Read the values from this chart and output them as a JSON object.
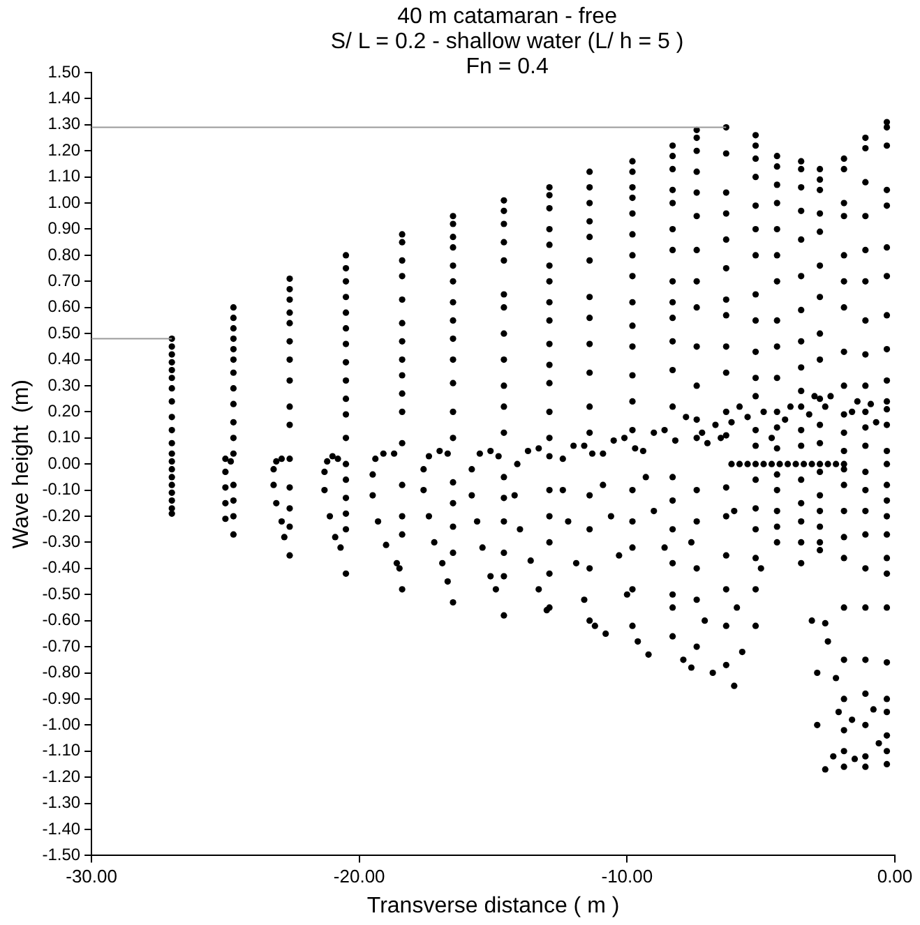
{
  "chart_data": {
    "type": "scatter",
    "title": "40 m catamaran - free",
    "subtitle": "S/ L = 0.2 - shallow water (L/ h = 5 )",
    "annotations": [
      "Fn = 0.4"
    ],
    "xlabel": "Transverse distance ( m )",
    "ylabel": "Wave height  (m)",
    "xlim": [
      -30,
      0
    ],
    "ylim": [
      -1.5,
      1.5
    ],
    "xticks": [
      {
        "value": -30,
        "label": "-30.00"
      },
      {
        "value": -20,
        "label": "-20.00"
      },
      {
        "value": -10,
        "label": "-10.00"
      },
      {
        "value": 0,
        "label": "0.00"
      }
    ],
    "yticks": [
      {
        "value": -1.5,
        "label": "-1.50"
      },
      {
        "value": -1.4,
        "label": "-1.40"
      },
      {
        "value": -1.3,
        "label": "-1.30"
      },
      {
        "value": -1.2,
        "label": "-1.20"
      },
      {
        "value": -1.1,
        "label": "-1.10"
      },
      {
        "value": -1.0,
        "label": "-1.00"
      },
      {
        "value": -0.9,
        "label": "-0.90"
      },
      {
        "value": -0.8,
        "label": "-0.80"
      },
      {
        "value": -0.7,
        "label": "-0.70"
      },
      {
        "value": -0.6,
        "label": "-0.60"
      },
      {
        "value": -0.5,
        "label": "-0.50"
      },
      {
        "value": -0.4,
        "label": "-0.40"
      },
      {
        "value": -0.3,
        "label": "-0.30"
      },
      {
        "value": -0.2,
        "label": "-0.20"
      },
      {
        "value": -0.1,
        "label": "-0.10"
      },
      {
        "value": 0,
        "label": "0.00"
      },
      {
        "value": 0.1,
        "label": "0.10"
      },
      {
        "value": 0.2,
        "label": "0.20"
      },
      {
        "value": 0.3,
        "label": "0.30"
      },
      {
        "value": 0.4,
        "label": "0.40"
      },
      {
        "value": 0.5,
        "label": "0.50"
      },
      {
        "value": 0.6,
        "label": "0.60"
      },
      {
        "value": 0.7,
        "label": "0.70"
      },
      {
        "value": 0.8,
        "label": "0.80"
      },
      {
        "value": 0.9,
        "label": "0.90"
      },
      {
        "value": 1.0,
        "label": "1.00"
      },
      {
        "value": 1.1,
        "label": "1.10"
      },
      {
        "value": 1.2,
        "label": "1.20"
      },
      {
        "value": 1.3,
        "label": "1.30"
      },
      {
        "value": 1.4,
        "label": "1.40"
      },
      {
        "value": 1.5,
        "label": "1.50"
      }
    ],
    "grid": false,
    "legend": false,
    "marker": "circle",
    "series": [
      {
        "type": "line",
        "marker": "none",
        "color": "#999999",
        "x": [
          -30,
          -6.3
        ],
        "values": [
          1.29,
          1.29
        ]
      },
      {
        "type": "line",
        "marker": "none",
        "color": "#999999",
        "x": [
          -30,
          -27
        ],
        "values": [
          0.48,
          0.48
        ]
      },
      {
        "color": "#000000",
        "x": [
          -27,
          -27,
          -27,
          -27,
          -27,
          -27,
          -27,
          -27,
          -27,
          -27,
          -27,
          -27,
          -27,
          -27,
          -27,
          -27,
          -27,
          -27,
          -27,
          -27
        ],
        "values": [
          0.48,
          0.45,
          0.42,
          0.39,
          0.36,
          0.33,
          0.29,
          0.24,
          0.18,
          0.13,
          0.08,
          0.04,
          0.01,
          -0.02,
          -0.05,
          -0.08,
          -0.11,
          -0.14,
          -0.17,
          -0.19
        ]
      },
      {
        "color": "#000000",
        "x": [
          -24.7,
          -24.7,
          -24.7,
          -24.7,
          -24.7,
          -24.7,
          -24.7,
          -24.7,
          -24.7,
          -24.7,
          -24.7,
          -24.7,
          -24.7,
          -24.7,
          -24.7,
          -24.7,
          -25.0,
          -25.0,
          -25.0,
          -25.0,
          -25.0,
          -24.8
        ],
        "values": [
          0.6,
          0.56,
          0.52,
          0.48,
          0.44,
          0.4,
          0.35,
          0.29,
          0.23,
          0.16,
          0.1,
          0.04,
          -0.08,
          -0.14,
          -0.2,
          -0.27,
          0.02,
          -0.03,
          -0.09,
          -0.15,
          -0.21,
          0.01
        ]
      },
      {
        "color": "#000000",
        "x": [
          -22.6,
          -22.6,
          -22.6,
          -22.6,
          -22.6,
          -22.6,
          -22.6,
          -22.6,
          -22.6,
          -22.6,
          -22.6,
          -22.6,
          -22.6,
          -22.6,
          -22.6,
          -23.2,
          -23.1,
          -22.9,
          -23.2,
          -23.1,
          -22.9,
          -22.8
        ],
        "values": [
          0.71,
          0.67,
          0.63,
          0.58,
          0.54,
          0.47,
          0.4,
          0.32,
          0.22,
          0.15,
          0.02,
          -0.09,
          -0.17,
          -0.24,
          -0.35,
          -0.02,
          0.01,
          0.02,
          -0.08,
          -0.15,
          -0.22,
          -0.28
        ]
      },
      {
        "color": "#000000",
        "x": [
          -20.5,
          -20.5,
          -20.5,
          -20.5,
          -20.5,
          -20.5,
          -20.5,
          -20.5,
          -20.5,
          -20.5,
          -20.5,
          -20.5,
          -20.5,
          -20.5,
          -20.5,
          -20.5,
          -20.5,
          -20.5,
          -21.3,
          -21.2,
          -21.0,
          -20.8,
          -21.3,
          -21.1,
          -20.9,
          -20.7
        ],
        "values": [
          0.8,
          0.75,
          0.7,
          0.64,
          0.58,
          0.52,
          0.46,
          0.39,
          0.32,
          0.25,
          0.19,
          0.1,
          0.0,
          -0.06,
          -0.13,
          -0.19,
          -0.25,
          -0.42,
          -0.03,
          0.01,
          0.03,
          0.02,
          -0.1,
          -0.2,
          -0.28,
          -0.32
        ]
      },
      {
        "color": "#000000",
        "x": [
          -18.4,
          -18.4,
          -18.4,
          -18.4,
          -18.4,
          -18.4,
          -18.4,
          -18.4,
          -18.4,
          -18.4,
          -18.4,
          -18.4,
          -18.4,
          -18.4,
          -18.4,
          -18.4,
          -19.5,
          -19.4,
          -19.1,
          -18.7,
          -19.5,
          -19.3,
          -19.0,
          -18.6,
          -18.5
        ],
        "values": [
          0.88,
          0.85,
          0.78,
          0.72,
          0.63,
          0.54,
          0.47,
          0.4,
          0.34,
          0.27,
          0.2,
          0.08,
          -0.08,
          -0.2,
          -0.27,
          -0.48,
          -0.04,
          0.02,
          0.04,
          0.04,
          -0.12,
          -0.22,
          -0.31,
          -0.38,
          -0.4
        ]
      },
      {
        "color": "#000000",
        "x": [
          -16.5,
          -16.5,
          -16.5,
          -16.5,
          -16.5,
          -16.5,
          -16.5,
          -16.5,
          -16.5,
          -16.5,
          -16.5,
          -16.5,
          -16.5,
          -16.5,
          -16.5,
          -16.5,
          -16.5,
          -16.5,
          -17.6,
          -17.4,
          -17.0,
          -16.7,
          -17.6,
          -17.4,
          -17.2,
          -16.9,
          -16.7
        ],
        "values": [
          0.95,
          0.92,
          0.87,
          0.83,
          0.76,
          0.7,
          0.62,
          0.55,
          0.48,
          0.4,
          0.31,
          0.2,
          0.1,
          -0.07,
          -0.15,
          -0.24,
          -0.34,
          -0.53,
          -0.02,
          0.03,
          0.05,
          0.04,
          -0.1,
          -0.2,
          -0.3,
          -0.38,
          -0.45
        ]
      },
      {
        "color": "#000000",
        "x": [
          -14.6,
          -14.6,
          -14.6,
          -14.6,
          -14.6,
          -14.6,
          -14.6,
          -14.6,
          -14.6,
          -14.6,
          -14.6,
          -14.6,
          -14.6,
          -14.6,
          -14.6,
          -14.6,
          -14.6,
          -14.6,
          -15.8,
          -15.5,
          -15.1,
          -14.8,
          -15.8,
          -15.6,
          -15.4,
          -15.1,
          -14.9
        ],
        "values": [
          1.01,
          0.97,
          0.92,
          0.85,
          0.78,
          0.65,
          0.6,
          0.5,
          0.4,
          0.3,
          0.22,
          0.12,
          -0.05,
          -0.13,
          -0.22,
          -0.34,
          -0.43,
          -0.58,
          -0.02,
          0.04,
          0.05,
          0.03,
          -0.12,
          -0.22,
          -0.32,
          -0.43,
          -0.48
        ]
      },
      {
        "color": "#000000",
        "x": [
          -12.9,
          -12.9,
          -12.9,
          -12.9,
          -12.9,
          -12.9,
          -12.9,
          -12.9,
          -12.9,
          -12.9,
          -12.9,
          -12.9,
          -12.9,
          -12.9,
          -12.9,
          -12.9,
          -12.9,
          -12.9,
          -12.9,
          -14.1,
          -13.7,
          -13.3,
          -12.9,
          -14.2,
          -14.0,
          -13.6,
          -13.3,
          -13.0
        ],
        "values": [
          1.06,
          1.03,
          0.98,
          0.9,
          0.84,
          0.76,
          0.7,
          0.62,
          0.55,
          0.46,
          0.38,
          0.31,
          0.2,
          0.1,
          -0.1,
          -0.2,
          -0.3,
          -0.42,
          -0.55,
          0.0,
          0.05,
          0.06,
          0.03,
          -0.12,
          -0.25,
          -0.37,
          -0.48,
          -0.56
        ]
      },
      {
        "color": "#000000",
        "x": [
          -11.4,
          -11.4,
          -11.4,
          -11.4,
          -11.4,
          -11.4,
          -11.4,
          -11.4,
          -11.4,
          -11.4,
          -11.4,
          -11.4,
          -11.4,
          -11.4,
          -11.4,
          -11.4,
          -12.4,
          -12.0,
          -11.6,
          -11.3,
          -12.4,
          -12.2,
          -11.9,
          -11.6,
          -11.2,
          -10.8
        ],
        "values": [
          1.12,
          1.06,
          1.0,
          0.93,
          0.87,
          0.78,
          0.64,
          0.56,
          0.46,
          0.35,
          0.22,
          0.12,
          -0.12,
          -0.25,
          -0.4,
          -0.6,
          0.02,
          0.07,
          0.07,
          0.04,
          -0.1,
          -0.22,
          -0.38,
          -0.52,
          -0.62,
          -0.65
        ]
      },
      {
        "color": "#000000",
        "x": [
          -9.8,
          -9.8,
          -9.8,
          -9.8,
          -9.8,
          -9.8,
          -9.8,
          -9.8,
          -9.8,
          -9.8,
          -9.8,
          -9.8,
          -9.8,
          -9.8,
          -9.8,
          -9.8,
          -9.8,
          -9.8,
          -9.8,
          -10.9,
          -10.5,
          -10.1,
          -9.7,
          -10.9,
          -10.6,
          -10.3,
          -10.0,
          -9.6,
          -9.2
        ],
        "values": [
          1.16,
          1.12,
          1.06,
          1.02,
          0.96,
          0.88,
          0.8,
          0.72,
          0.62,
          0.53,
          0.45,
          0.34,
          0.24,
          0.13,
          -0.1,
          -0.22,
          -0.32,
          -0.48,
          -0.62,
          0.04,
          0.09,
          0.1,
          0.06,
          -0.08,
          -0.2,
          -0.35,
          -0.5,
          -0.68,
          -0.73
        ]
      },
      {
        "color": "#000000",
        "x": [
          -8.3,
          -8.3,
          -8.3,
          -8.3,
          -8.3,
          -8.3,
          -8.3,
          -8.3,
          -8.3,
          -8.3,
          -8.3,
          -8.3,
          -8.3,
          -8.3,
          -8.3,
          -8.3,
          -8.3,
          -8.3,
          -8.3,
          -9.4,
          -9.0,
          -8.6,
          -8.2,
          -9.3,
          -9.0,
          -8.6,
          -8.3,
          -7.9,
          -7.6
        ],
        "values": [
          1.22,
          1.18,
          1.13,
          1.05,
          1.0,
          0.9,
          0.82,
          0.7,
          0.62,
          0.56,
          0.47,
          0.36,
          0.22,
          -0.05,
          -0.14,
          -0.25,
          -0.38,
          -0.5,
          -0.66,
          0.05,
          0.12,
          0.13,
          0.09,
          -0.05,
          -0.18,
          -0.32,
          -0.55,
          -0.75,
          -0.78
        ]
      },
      {
        "color": "#000000",
        "x": [
          -7.4,
          -7.4,
          -7.4,
          -7.4,
          -7.4,
          -7.4,
          -7.4,
          -7.4,
          -7.4,
          -7.4,
          -7.4,
          -7.4,
          -7.4,
          -7.4,
          -7.4,
          -7.4,
          -7.4,
          -7.4,
          -7.8,
          -7.2,
          -7.0,
          -7.6,
          -7.1,
          -6.8
        ],
        "values": [
          1.28,
          1.25,
          1.2,
          1.12,
          1.04,
          0.95,
          0.82,
          0.7,
          0.6,
          0.45,
          0.3,
          0.17,
          0.1,
          -0.1,
          -0.22,
          -0.4,
          -0.52,
          -0.7,
          0.18,
          0.12,
          0.08,
          -0.3,
          -0.6,
          -0.8
        ]
      },
      {
        "color": "#000000",
        "x": [
          -6.3,
          -6.3,
          -6.3,
          -6.3,
          -6.3,
          -6.3,
          -6.3,
          -6.3,
          -6.3,
          -6.3,
          -6.3,
          -6.3,
          -6.3,
          -6.3,
          -6.3,
          -6.3,
          -6.3,
          -6.3,
          -6.7,
          -6.5,
          -6.1,
          -5.8,
          -6.0,
          -5.9,
          -6.0,
          -5.7
        ],
        "values": [
          1.29,
          1.19,
          1.04,
          0.96,
          0.86,
          0.75,
          0.63,
          0.57,
          0.45,
          0.35,
          0.2,
          0.11,
          -0.09,
          -0.2,
          -0.35,
          -0.48,
          -0.62,
          -0.77,
          0.15,
          0.1,
          0.16,
          0.22,
          -0.18,
          -0.55,
          -0.85,
          -0.72
        ]
      },
      {
        "color": "#000000",
        "x": [
          -5.2,
          -5.2,
          -5.2,
          -5.2,
          -5.2,
          -5.2,
          -5.2,
          -5.2,
          -5.2,
          -5.2,
          -5.2,
          -5.2,
          -5.2,
          -5.2,
          -5.2,
          -5.2,
          -5.2,
          -5.2,
          -5.2,
          -5.2,
          -5.5,
          -4.9,
          -4.6,
          -5.0
        ],
        "values": [
          1.26,
          1.22,
          1.17,
          1.1,
          0.99,
          0.9,
          0.8,
          0.65,
          0.55,
          0.43,
          0.33,
          0.26,
          0.13,
          0.07,
          -0.06,
          -0.17,
          -0.25,
          -0.36,
          -0.48,
          -0.62,
          0.18,
          0.2,
          0.1,
          -0.4
        ]
      },
      {
        "color": "#000000",
        "x": [
          -4.4,
          -4.4,
          -4.4,
          -4.4,
          -4.4,
          -4.4,
          -4.4,
          -4.4,
          -4.4,
          -4.4,
          -4.4,
          -4.4,
          -4.4,
          -4.4,
          -4.4,
          -4.4,
          -4.4,
          -4.4,
          -4.1,
          -3.9
        ],
        "values": [
          1.18,
          1.14,
          1.07,
          1.0,
          0.9,
          0.8,
          0.7,
          0.55,
          0.45,
          0.33,
          0.2,
          0.14,
          0.06,
          -0.04,
          -0.1,
          -0.18,
          -0.24,
          -0.3,
          0.17,
          0.22
        ]
      },
      {
        "color": "#000000",
        "x": [
          -3.5,
          -3.5,
          -3.5,
          -3.5,
          -3.5,
          -3.5,
          -3.5,
          -3.5,
          -3.5,
          -3.5,
          -3.5,
          -3.5,
          -3.5,
          -3.5,
          -3.5,
          -3.5,
          -3.5,
          -3.5,
          -3.2,
          -3.0,
          -3.1
        ],
        "values": [
          1.16,
          1.13,
          1.06,
          0.97,
          0.86,
          0.72,
          0.59,
          0.47,
          0.37,
          0.28,
          0.22,
          0.13,
          0.07,
          -0.06,
          -0.15,
          -0.22,
          -0.3,
          -0.38,
          0.19,
          0.26,
          -0.6
        ]
      },
      {
        "color": "#000000",
        "x": [
          -2.8,
          -2.8,
          -2.8,
          -2.8,
          -2.8,
          -2.8,
          -2.8,
          -2.8,
          -2.8,
          -2.8,
          -2.8,
          -2.8,
          -2.8,
          -2.8,
          -2.8,
          -2.8,
          -2.8,
          -2.8,
          -2.6,
          -2.4,
          -2.6,
          -2.9,
          -2.9,
          -2.6,
          -2.5
        ],
        "values": [
          1.13,
          1.09,
          1.05,
          0.96,
          0.89,
          0.76,
          0.64,
          0.5,
          0.4,
          0.25,
          0.15,
          0.08,
          -0.03,
          -0.12,
          -0.18,
          -0.24,
          -0.3,
          -0.33,
          0.22,
          0.26,
          -0.61,
          -0.8,
          -1.0,
          -1.17,
          -0.68
        ]
      },
      {
        "color": "#000000",
        "x": [
          -1.9,
          -1.9,
          -1.9,
          -1.9,
          -1.9,
          -1.9,
          -1.9,
          -1.9,
          -1.9,
          -1.9,
          -1.9,
          -1.9,
          -1.9,
          -1.9,
          -1.9,
          -1.9,
          -1.9,
          -1.9,
          -1.9,
          -1.9,
          -1.9,
          -1.9,
          -1.9,
          -2.2,
          -2.1,
          -2.3,
          -1.6,
          -1.4,
          -1.6,
          -1.5
        ],
        "values": [
          1.17,
          1.13,
          1.0,
          0.95,
          0.8,
          0.7,
          0.6,
          0.43,
          0.3,
          0.19,
          0.12,
          0.05,
          -0.02,
          -0.08,
          -0.18,
          -0.28,
          -0.36,
          -0.55,
          -0.75,
          -0.9,
          -1.02,
          -1.1,
          -1.16,
          -0.82,
          -0.95,
          -1.12,
          0.2,
          0.24,
          -0.98,
          -1.13
        ]
      },
      {
        "color": "#000000",
        "x": [
          -1.1,
          -1.1,
          -1.1,
          -1.1,
          -1.1,
          -1.1,
          -1.1,
          -1.1,
          -1.1,
          -1.1,
          -1.1,
          -1.1,
          -1.1,
          -1.1,
          -1.1,
          -1.1,
          -1.1,
          -1.1,
          -1.1,
          -1.1,
          -1.1,
          -1.1,
          -1.1,
          -0.9,
          -0.7,
          -0.8,
          -0.6
        ],
        "values": [
          1.25,
          1.21,
          1.08,
          0.95,
          0.82,
          0.7,
          0.55,
          0.42,
          0.3,
          0.2,
          0.14,
          0.07,
          -0.03,
          -0.1,
          -0.18,
          -0.27,
          -0.4,
          -0.55,
          -0.75,
          -0.88,
          -1.0,
          -1.12,
          -1.16,
          0.23,
          0.16,
          -0.94,
          -1.07
        ]
      },
      {
        "color": "#000000",
        "x": [
          -0.3,
          -0.3,
          -0.3,
          -0.3,
          -0.3,
          -0.3,
          -0.3,
          -0.3,
          -0.3,
          -0.3,
          -0.3,
          -0.3,
          -0.3,
          -0.3,
          -0.3,
          -0.3,
          -0.3,
          -0.3,
          -0.3,
          -0.3,
          -0.3,
          -0.3,
          -0.3,
          -0.3,
          -0.3,
          -0.3,
          -0.3,
          -0.3
        ],
        "values": [
          1.31,
          1.29,
          1.22,
          1.05,
          0.99,
          0.83,
          0.72,
          0.57,
          0.44,
          0.32,
          0.24,
          0.21,
          0.15,
          0.05,
          0.0,
          -0.08,
          -0.14,
          -0.2,
          -0.27,
          -0.36,
          -0.42,
          -0.55,
          -0.76,
          -0.9,
          -0.95,
          -1.04,
          -1.1,
          -1.15
        ]
      },
      {
        "color": "#000000",
        "x": [
          -6.1,
          -5.8,
          -5.5,
          -5.2,
          -4.9,
          -4.6,
          -4.3,
          -4.0,
          -3.7,
          -3.4,
          -3.1,
          -2.8,
          -2.5,
          -2.2,
          -1.9
        ],
        "values": [
          0,
          0,
          0,
          0,
          0,
          0,
          0,
          0,
          0,
          0,
          0,
          0,
          0,
          0,
          0
        ]
      }
    ]
  }
}
